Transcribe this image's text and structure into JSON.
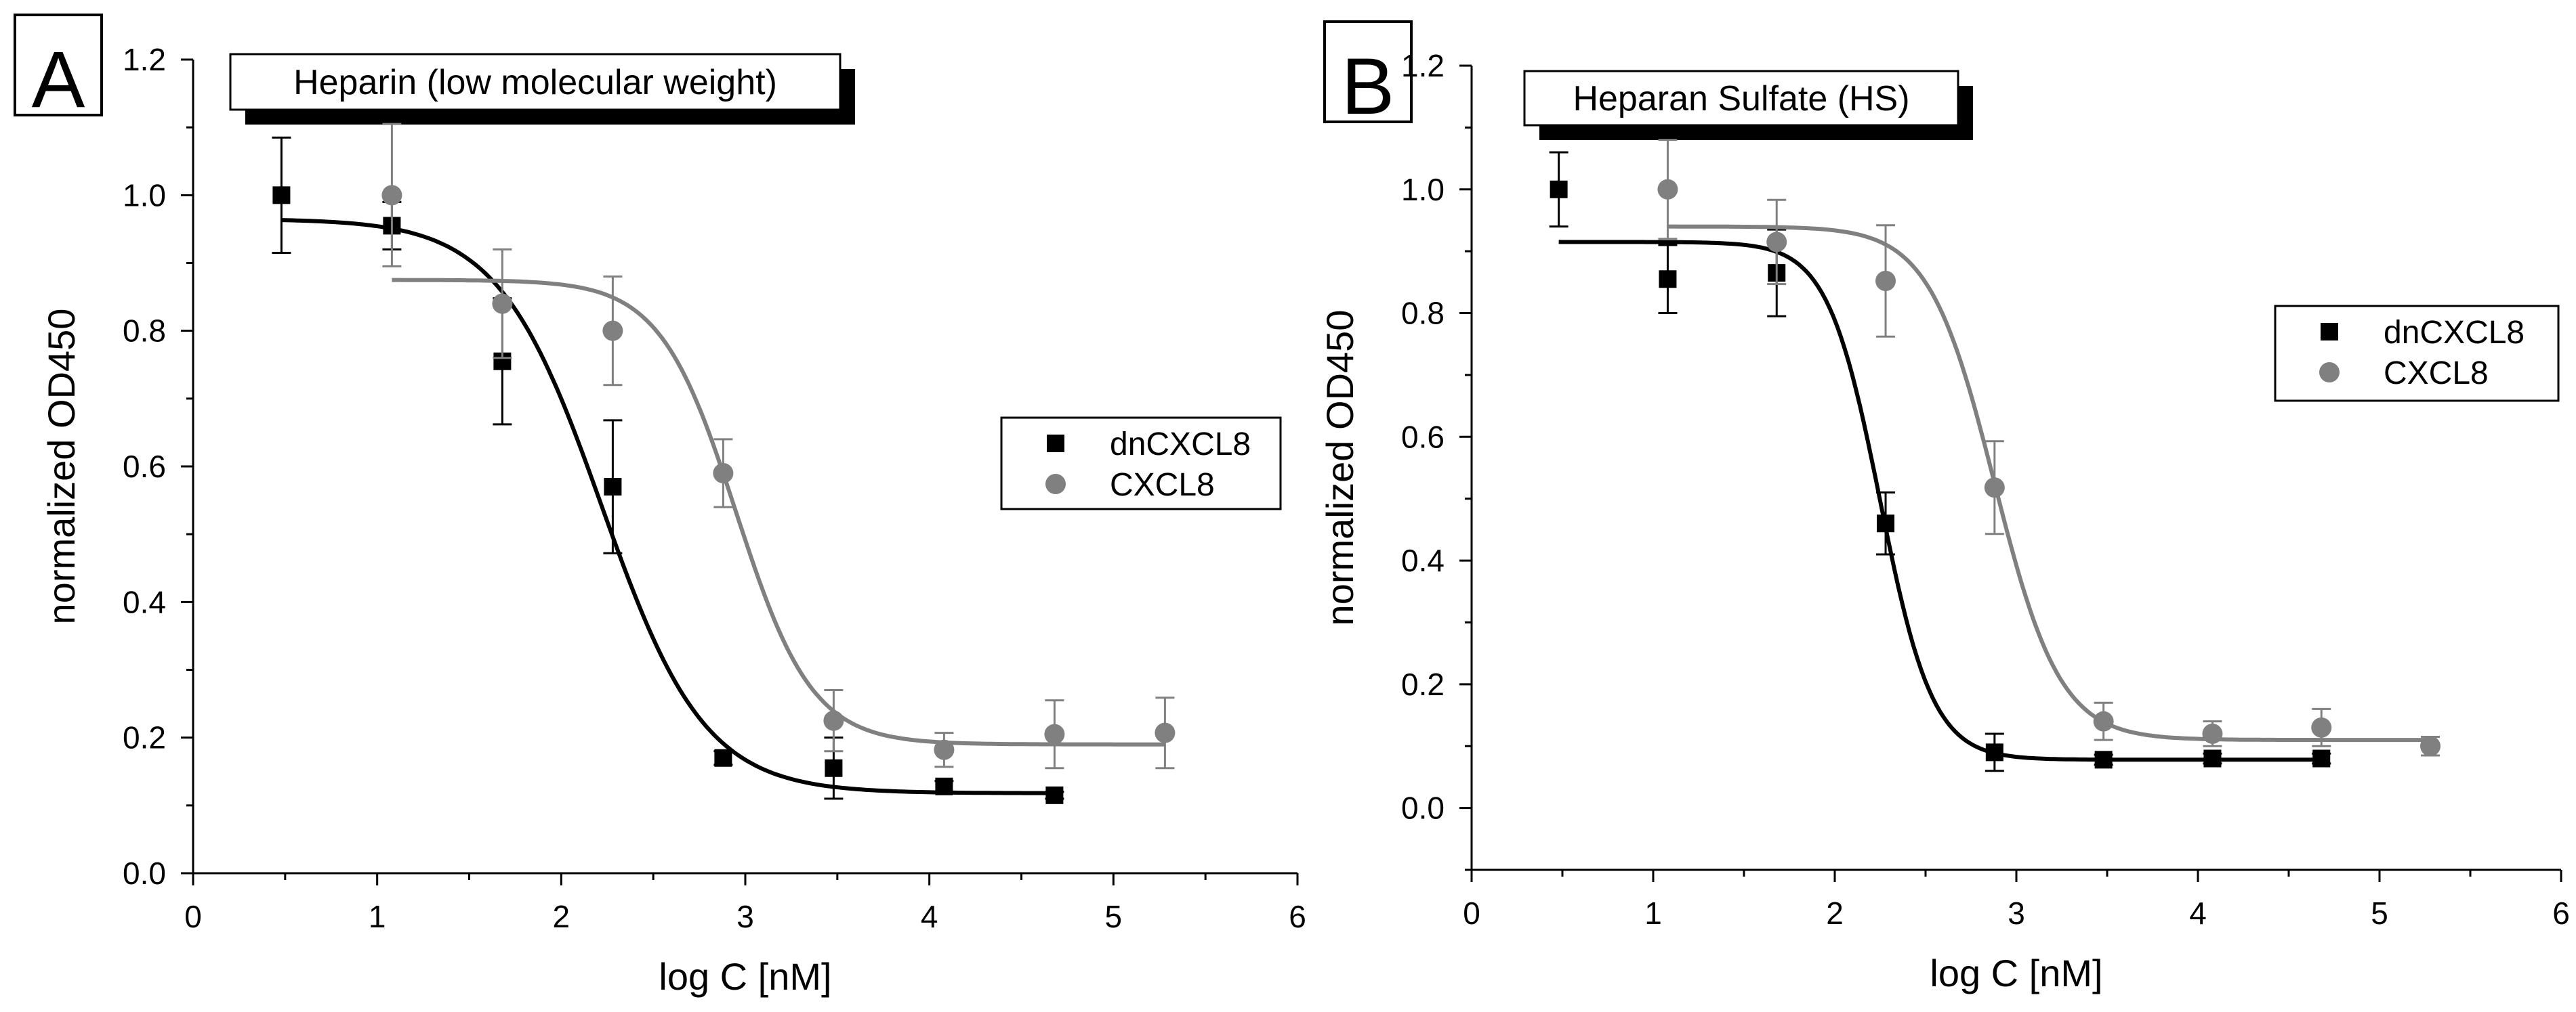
{
  "figure": {
    "panels": [
      "A",
      "B"
    ]
  },
  "colors": {
    "dnCXCL8": "#000000",
    "CXCL8": "#808080",
    "axis": "#000000"
  },
  "chart_data": [
    {
      "panel_label": "A",
      "type": "scatter",
      "title": "Heparin (low molecular weight)",
      "xlabel": "log C [nM]",
      "ylabel": "normalized OD450",
      "xlim": [
        0,
        6
      ],
      "ylim": [
        0,
        1.2
      ],
      "x_ticks": [
        0,
        1,
        2,
        3,
        4,
        5,
        6
      ],
      "y_ticks": [
        0.0,
        0.2,
        0.4,
        0.6,
        0.8,
        1.0,
        1.2
      ],
      "x_tick_labels": [
        "0",
        "1",
        "2",
        "3",
        "4",
        "5",
        "6"
      ],
      "y_tick_labels": [
        "0.0",
        "0.2",
        "0.4",
        "0.6",
        "0.8",
        "1.0",
        "1.2"
      ],
      "legend": {
        "position": "middle-right",
        "entries": [
          "dnCXCL8",
          "CXCL8"
        ]
      },
      "series": [
        {
          "name": "dnCXCL8",
          "marker": "square",
          "color": "#000000",
          "x": [
            0.48,
            1.08,
            1.68,
            2.28,
            2.88,
            3.48,
            4.08,
            4.68
          ],
          "y": [
            1.0,
            0.955,
            0.755,
            0.57,
            0.17,
            0.155,
            0.128,
            0.115
          ],
          "err": [
            0.085,
            0.035,
            0.093,
            0.098,
            0.01,
            0.045,
            0.008,
            0.005
          ],
          "fit": {
            "bottom": 0.118,
            "top": 0.965,
            "log_ec50": 2.22,
            "hill": 1.55,
            "x_range": [
              0.48,
              4.68
            ]
          }
        },
        {
          "name": "CXCL8",
          "marker": "circle",
          "color": "#808080",
          "x": [
            1.08,
            1.68,
            2.28,
            2.88,
            3.48,
            4.08,
            4.68,
            5.28
          ],
          "y": [
            1.0,
            0.84,
            0.8,
            0.59,
            0.225,
            0.182,
            0.205,
            0.207
          ],
          "err": [
            0.105,
            0.08,
            0.08,
            0.05,
            0.045,
            0.025,
            0.05,
            0.052
          ],
          "fit": {
            "bottom": 0.19,
            "top": 0.875,
            "log_ec50": 2.95,
            "hill": 2.1,
            "x_range": [
              1.08,
              5.28
            ]
          }
        }
      ]
    },
    {
      "panel_label": "B",
      "type": "scatter",
      "title": "Heparan Sulfate (HS)",
      "xlabel": "log C [nM]",
      "ylabel": "normalized OD450",
      "xlim": [
        0,
        6
      ],
      "ylim": [
        -0.1,
        1.2
      ],
      "x_ticks": [
        0,
        1,
        2,
        3,
        4,
        5,
        6
      ],
      "y_ticks": [
        0.0,
        0.2,
        0.4,
        0.6,
        0.8,
        1.0,
        1.2
      ],
      "x_tick_labels": [
        "0",
        "1",
        "2",
        "3",
        "4",
        "5",
        "6"
      ],
      "y_tick_labels": [
        "0.0",
        "0.2",
        "0.4",
        "0.6",
        "0.8",
        "1.0",
        "1.2"
      ],
      "legend": {
        "position": "upper-right",
        "entries": [
          "dnCXCL8",
          "CXCL8"
        ]
      },
      "series": [
        {
          "name": "dnCXCL8",
          "marker": "square",
          "color": "#000000",
          "x": [
            0.48,
            1.08,
            1.68,
            2.28,
            2.88,
            3.48,
            4.08,
            4.68
          ],
          "y": [
            1.0,
            0.855,
            0.865,
            0.46,
            0.09,
            0.078,
            0.08,
            0.08
          ],
          "err": [
            0.06,
            0.055,
            0.07,
            0.05,
            0.03,
            0.008,
            0.008,
            0.008
          ],
          "fit": {
            "bottom": 0.078,
            "top": 0.915,
            "log_ec50": 2.25,
            "hill": 3.0,
            "x_range": [
              0.48,
              4.68
            ]
          }
        },
        {
          "name": "CXCL8",
          "marker": "circle",
          "color": "#808080",
          "x": [
            1.08,
            1.68,
            2.28,
            2.88,
            3.48,
            4.08,
            4.68,
            5.28
          ],
          "y": [
            1.0,
            0.915,
            0.852,
            0.518,
            0.14,
            0.12,
            0.13,
            0.1
          ],
          "err": [
            0.08,
            0.068,
            0.09,
            0.075,
            0.03,
            0.02,
            0.03,
            0.015
          ],
          "fit": {
            "bottom": 0.11,
            "top": 0.94,
            "log_ec50": 2.88,
            "hill": 2.4,
            "x_range": [
              1.08,
              5.28
            ]
          }
        }
      ]
    }
  ]
}
